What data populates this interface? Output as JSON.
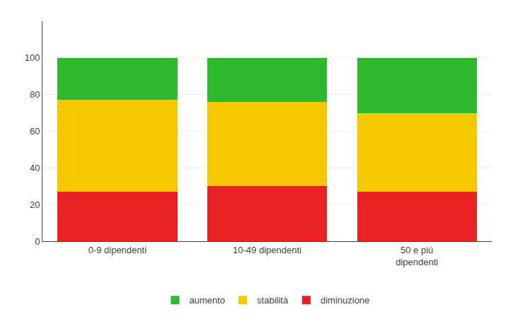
{
  "chart_data": {
    "type": "bar",
    "stacked": true,
    "categories": [
      "0-9 dipendenti",
      "10-49 dipendenti",
      "50 e più\ndipendenti"
    ],
    "series": [
      {
        "name": "diminuzione",
        "color": "#e82222",
        "values": [
          27,
          30,
          27
        ]
      },
      {
        "name": "stabilità",
        "color": "#f5c800",
        "values": [
          50,
          46,
          43
        ]
      },
      {
        "name": "aumento",
        "color": "#2db82d",
        "values": [
          23,
          24,
          30
        ]
      }
    ],
    "ylim": [
      0,
      120
    ],
    "yticks": [
      0,
      20,
      40,
      60,
      80,
      100
    ],
    "grid": true,
    "legend": "bottom"
  }
}
